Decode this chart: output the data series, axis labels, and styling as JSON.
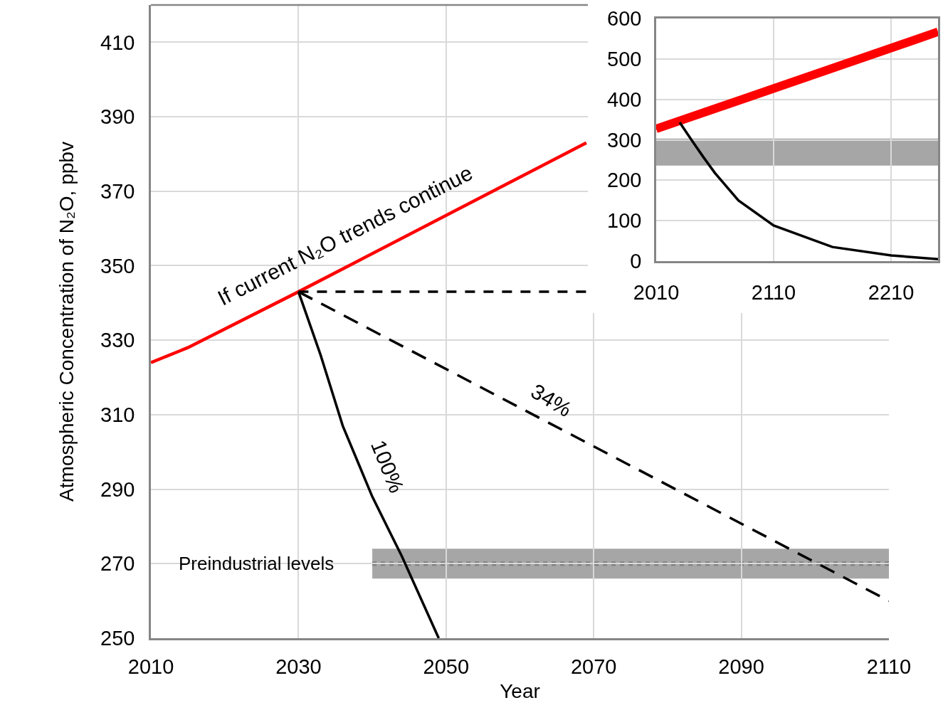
{
  "chart_data": [
    {
      "type": "line",
      "xlabel": "Year",
      "ylabel": "Atmospheric Concentration of N₂O, ppbv",
      "xlim": [
        2010,
        2110
      ],
      "xticks": [
        2010,
        2030,
        2050,
        2070,
        2090,
        2110
      ],
      "ylim": [
        250,
        420
      ],
      "yticks": [
        250,
        270,
        290,
        310,
        330,
        350,
        370,
        390,
        410
      ],
      "grid": true,
      "series": [
        {
          "color": "#ff0000",
          "x": [
            2010,
            2015,
            2030,
            2069
          ],
          "values": [
            324,
            328,
            343,
            383
          ],
          "line_style": "solid"
        },
        {
          "color": "#000000",
          "x": [
            2030,
            2033,
            2036,
            2040,
            2044,
            2049
          ],
          "values": [
            343,
            326,
            307,
            288,
            272,
            250
          ],
          "line_style": "solid"
        },
        {
          "color": "#000000",
          "x": [
            2030,
            2110
          ],
          "values": [
            343,
            260
          ],
          "line_style": "dashed"
        },
        {
          "color": "#000000",
          "x": [
            2030,
            2069
          ],
          "values": [
            343,
            343
          ],
          "line_style": "dashed"
        }
      ],
      "bands": [
        {
          "axis": "y",
          "from": 266,
          "to": 274,
          "label": "Preindustrial levels",
          "color": "#a6a6a6"
        }
      ],
      "ref_lines": [
        {
          "axis": "y",
          "value": 270,
          "color": "#7f7f7f",
          "line_style": "dotted"
        }
      ],
      "annotations": [
        "If current N₂O trends continue",
        "34%",
        "100%"
      ]
    },
    {
      "type": "line",
      "xlim": [
        2010,
        2250
      ],
      "xticks": [
        2010,
        2110,
        2210
      ],
      "ylim": [
        0,
        600
      ],
      "yticks": [
        0,
        100,
        200,
        300,
        400,
        500,
        600
      ],
      "grid": true,
      "series": [
        {
          "color": "#ff0000",
          "x": [
            2010,
            2250
          ],
          "values": [
            327,
            567
          ],
          "line_style": "solid"
        },
        {
          "color": "#000000",
          "x": [
            2030,
            2040,
            2050,
            2060,
            2080,
            2110,
            2160,
            2210,
            2250
          ],
          "values": [
            343,
            300,
            258,
            218,
            150,
            88,
            35,
            14,
            5
          ],
          "line_style": "solid"
        }
      ],
      "bands": [
        {
          "axis": "y",
          "from": 236,
          "to": 303,
          "color": "#a6a6a6"
        }
      ]
    }
  ]
}
